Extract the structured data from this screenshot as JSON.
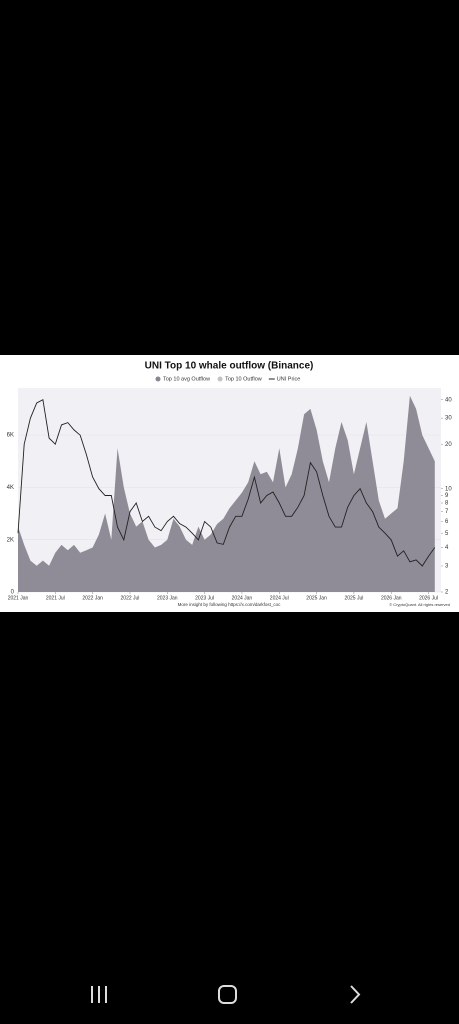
{
  "chart_data": {
    "type": "area_line",
    "title": "UNI Top 10 whale outflow (Binance)",
    "footer": "More insight by following https://x.com/darkfost_coc",
    "copyright": "© CryptoQuant. All rights reserved",
    "x": [
      "2021-01",
      "2021-02",
      "2021-03",
      "2021-04",
      "2021-05",
      "2021-06",
      "2021-07",
      "2021-08",
      "2021-09",
      "2021-10",
      "2021-11",
      "2021-12",
      "2022-01",
      "2022-02",
      "2022-03",
      "2022-04",
      "2022-05",
      "2022-06",
      "2022-07",
      "2022-08",
      "2022-09",
      "2022-10",
      "2022-11",
      "2022-12",
      "2023-01",
      "2023-02",
      "2023-03",
      "2023-04",
      "2023-05",
      "2023-06",
      "2023-07",
      "2023-08",
      "2023-09",
      "2023-10",
      "2023-11",
      "2023-12",
      "2024-01",
      "2024-02",
      "2024-03",
      "2024-04",
      "2024-05",
      "2024-06",
      "2024-07",
      "2024-08",
      "2024-09",
      "2024-10",
      "2024-11",
      "2024-12",
      "2025-01",
      "2025-02",
      "2025-03",
      "2025-04",
      "2025-05",
      "2025-06",
      "2025-07",
      "2025-08",
      "2025-09",
      "2025-10",
      "2025-11",
      "2025-12",
      "2026-01",
      "2026-02",
      "2026-03",
      "2026-04",
      "2026-05",
      "2026-06",
      "2026-07",
      "2026-08"
    ],
    "xlim": [
      "2021-01",
      "2026-09"
    ],
    "xticks": [
      {
        "value": "2021-01",
        "label": "2021 Jan"
      },
      {
        "value": "2021-07",
        "label": "2021 Jul"
      },
      {
        "value": "2022-01",
        "label": "2022 Jan"
      },
      {
        "value": "2022-07",
        "label": "2022 Jul"
      },
      {
        "value": "2023-01",
        "label": "2023 Jan"
      },
      {
        "value": "2023-07",
        "label": "2023 Jul"
      },
      {
        "value": "2024-01",
        "label": "2024 Jan"
      },
      {
        "value": "2024-07",
        "label": "2024 Jul"
      },
      {
        "value": "2025-01",
        "label": "2025 Jan"
      },
      {
        "value": "2025-07",
        "label": "2025 Jul"
      },
      {
        "value": "2026-01",
        "label": "2026 Jan"
      },
      {
        "value": "2026-07",
        "label": "2026 Jul"
      }
    ],
    "ylim": [
      0,
      7800
    ],
    "yticks": [
      0,
      {
        "value": 2000,
        "label": "2K"
      },
      {
        "value": 4000,
        "label": "4K"
      },
      {
        "value": 6000,
        "label": "6K"
      }
    ],
    "y2lim": [
      2,
      48
    ],
    "y2_log": true,
    "y2ticks": [
      2,
      3,
      4,
      5,
      6,
      7,
      8,
      9,
      10,
      20,
      30,
      40
    ],
    "series": [
      {
        "name": "Top 10 avg Outflow",
        "color": "#8a8691",
        "kind": "area",
        "values": [
          2500,
          1800,
          1200,
          1000,
          1200,
          1000,
          1500,
          1800,
          1600,
          1800,
          1500,
          1600,
          1700,
          2200,
          3000,
          2000,
          5500,
          4000,
          3000,
          2500,
          2700,
          2000,
          1700,
          1800,
          2000,
          2800,
          2500,
          2000,
          1800,
          2500,
          2000,
          2200,
          2600,
          2800,
          3200,
          3500,
          3800,
          4200,
          5000,
          4500,
          4600,
          4200,
          5500,
          4000,
          4500,
          5500,
          6800,
          7000,
          6200,
          5000,
          4200,
          5500,
          6500,
          5800,
          4500,
          5500,
          6500,
          5000,
          3500,
          2800,
          3000,
          3200,
          5000,
          7500,
          7000,
          6000,
          5500,
          5000
        ]
      },
      {
        "name": "Top 10 Outflow",
        "color": "#c4c2c8",
        "kind": "hidden"
      },
      {
        "name": "UNI Price",
        "color": "#222222",
        "kind": "line",
        "axis": "y2",
        "values": [
          5,
          20,
          30,
          38,
          40,
          22,
          20,
          27,
          28,
          25,
          23,
          17,
          12,
          10,
          9,
          9,
          5.5,
          4.5,
          7,
          8,
          6,
          6.5,
          5.5,
          5.2,
          6,
          6.5,
          5.8,
          5.5,
          5,
          4.5,
          6,
          5.5,
          4.3,
          4.2,
          5.5,
          6.5,
          6.5,
          8.5,
          12,
          8,
          9,
          9.5,
          8,
          6.5,
          6.5,
          7.5,
          9,
          15,
          13,
          9,
          6.5,
          5.5,
          5.5,
          7.5,
          9,
          10,
          8,
          7,
          5.5,
          5,
          4.5,
          3.5,
          3.8,
          3.2,
          3.3,
          3,
          3.5,
          4
        ]
      }
    ]
  }
}
